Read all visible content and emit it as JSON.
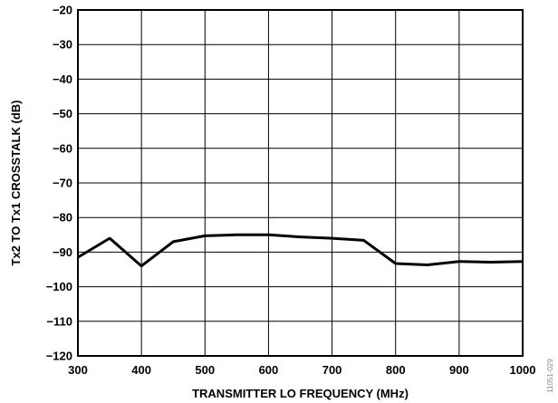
{
  "chart_data": {
    "type": "line",
    "title": "",
    "xlabel": "TRANSMITTER LO FREQUENCY (MHz)",
    "ylabel": "Tx2 TO Tx1 CROSSTALK (dB)",
    "xlim": [
      300,
      1000
    ],
    "ylim": [
      -120,
      -20
    ],
    "x_ticks": [
      300,
      400,
      500,
      600,
      700,
      800,
      900,
      1000
    ],
    "x_tick_labels": [
      "300",
      "400",
      "500",
      "600",
      "700",
      "800",
      "900",
      "1000"
    ],
    "y_ticks": [
      -20,
      -30,
      -40,
      -50,
      -60,
      -70,
      -80,
      -90,
      -100,
      -110,
      -120
    ],
    "y_tick_labels": [
      "−20",
      "−30",
      "−40",
      "−50",
      "−60",
      "−70",
      "−80",
      "−90",
      "−100",
      "−110",
      "−120"
    ],
    "grid": true,
    "series": [
      {
        "color": "#000000",
        "x": [
          300,
          350,
          400,
          450,
          500,
          550,
          600,
          650,
          700,
          750,
          800,
          850,
          900,
          950,
          1000
        ],
        "y": [
          -91.5,
          -86,
          -94,
          -87,
          -85.3,
          -85,
          -85,
          -85.6,
          -86,
          -86.6,
          -93.3,
          -93.7,
          -92.7,
          -92.9,
          -92.7
        ]
      }
    ],
    "side_note": "11051-029"
  }
}
